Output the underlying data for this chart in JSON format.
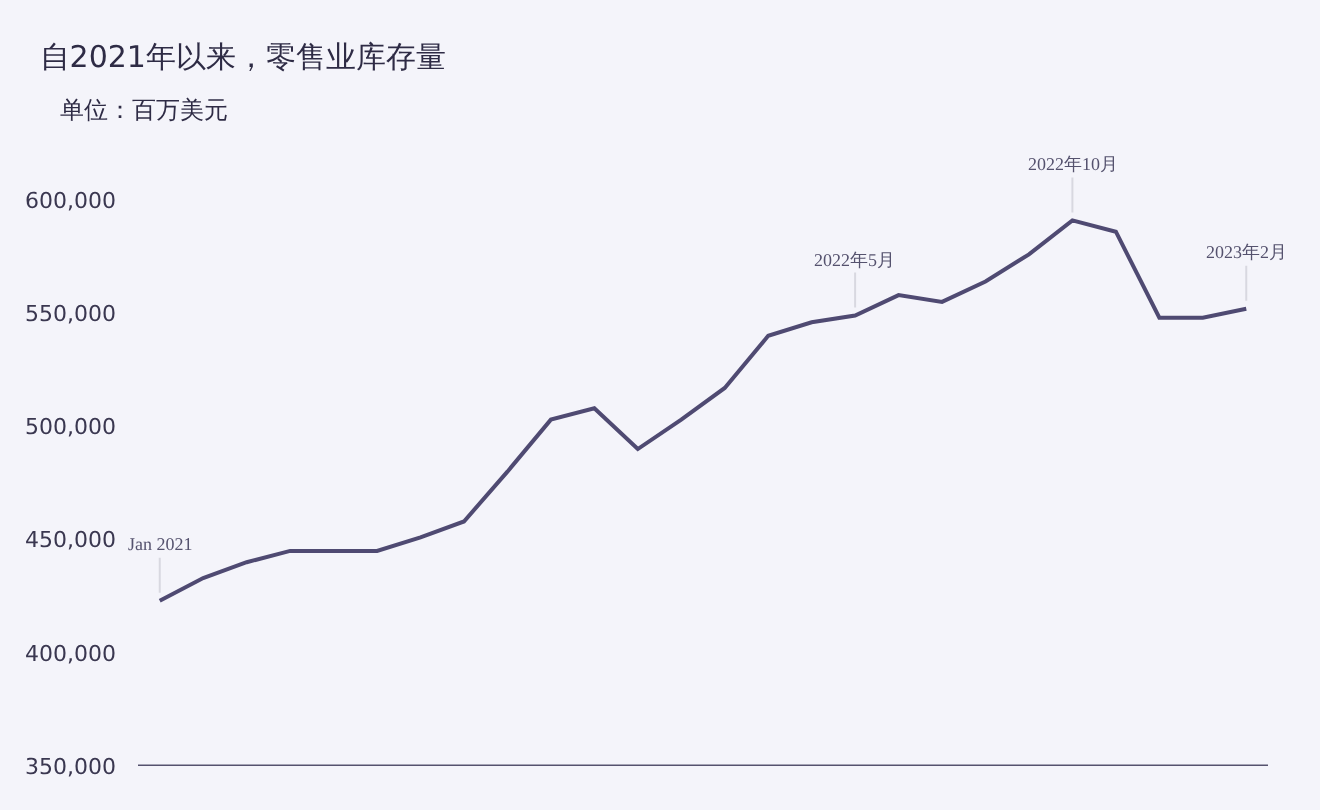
{
  "chart_data": {
    "type": "line",
    "title": "自2021年以来，零售业库存量",
    "subtitle": "单位：百万美元",
    "categories": [
      null,
      null,
      null,
      null,
      null,
      null,
      null,
      null,
      null,
      null,
      null,
      null,
      null,
      null,
      null,
      null,
      null,
      null,
      null,
      null,
      null,
      null,
      null,
      null,
      null,
      null
    ],
    "series": [
      {
        "color": "#4f4a72",
        "values": [
          423000,
          433000,
          440000,
          445000,
          445000,
          445000,
          451000,
          458000,
          480000,
          503000,
          508000,
          490000,
          503000,
          517000,
          540000,
          546000,
          549000,
          558000,
          555000,
          564000,
          576000,
          591000,
          586000,
          548000,
          548000,
          552000
        ]
      }
    ],
    "annotations": [
      {
        "text": "Jan 2021",
        "y": 423000
      },
      {
        "text": "2022年5月",
        "y": 549000
      },
      {
        "text": "2022年10月",
        "y": 591000
      },
      {
        "text": "2023年2月",
        "y": 552000
      }
    ],
    "ylim": [
      350000,
      600000
    ],
    "yticks": [
      {
        "value": 350000,
        "label": "350,000"
      },
      {
        "value": 400000,
        "label": "400,000"
      },
      {
        "value": 450000,
        "label": "450,000"
      },
      {
        "value": 500000,
        "label": "500,000"
      },
      {
        "value": 550000,
        "label": "550,000"
      },
      {
        "value": 600000,
        "label": "600,000"
      }
    ],
    "tick_labels": "y",
    "grid": false,
    "marker": "none",
    "line_style": "solid"
  }
}
